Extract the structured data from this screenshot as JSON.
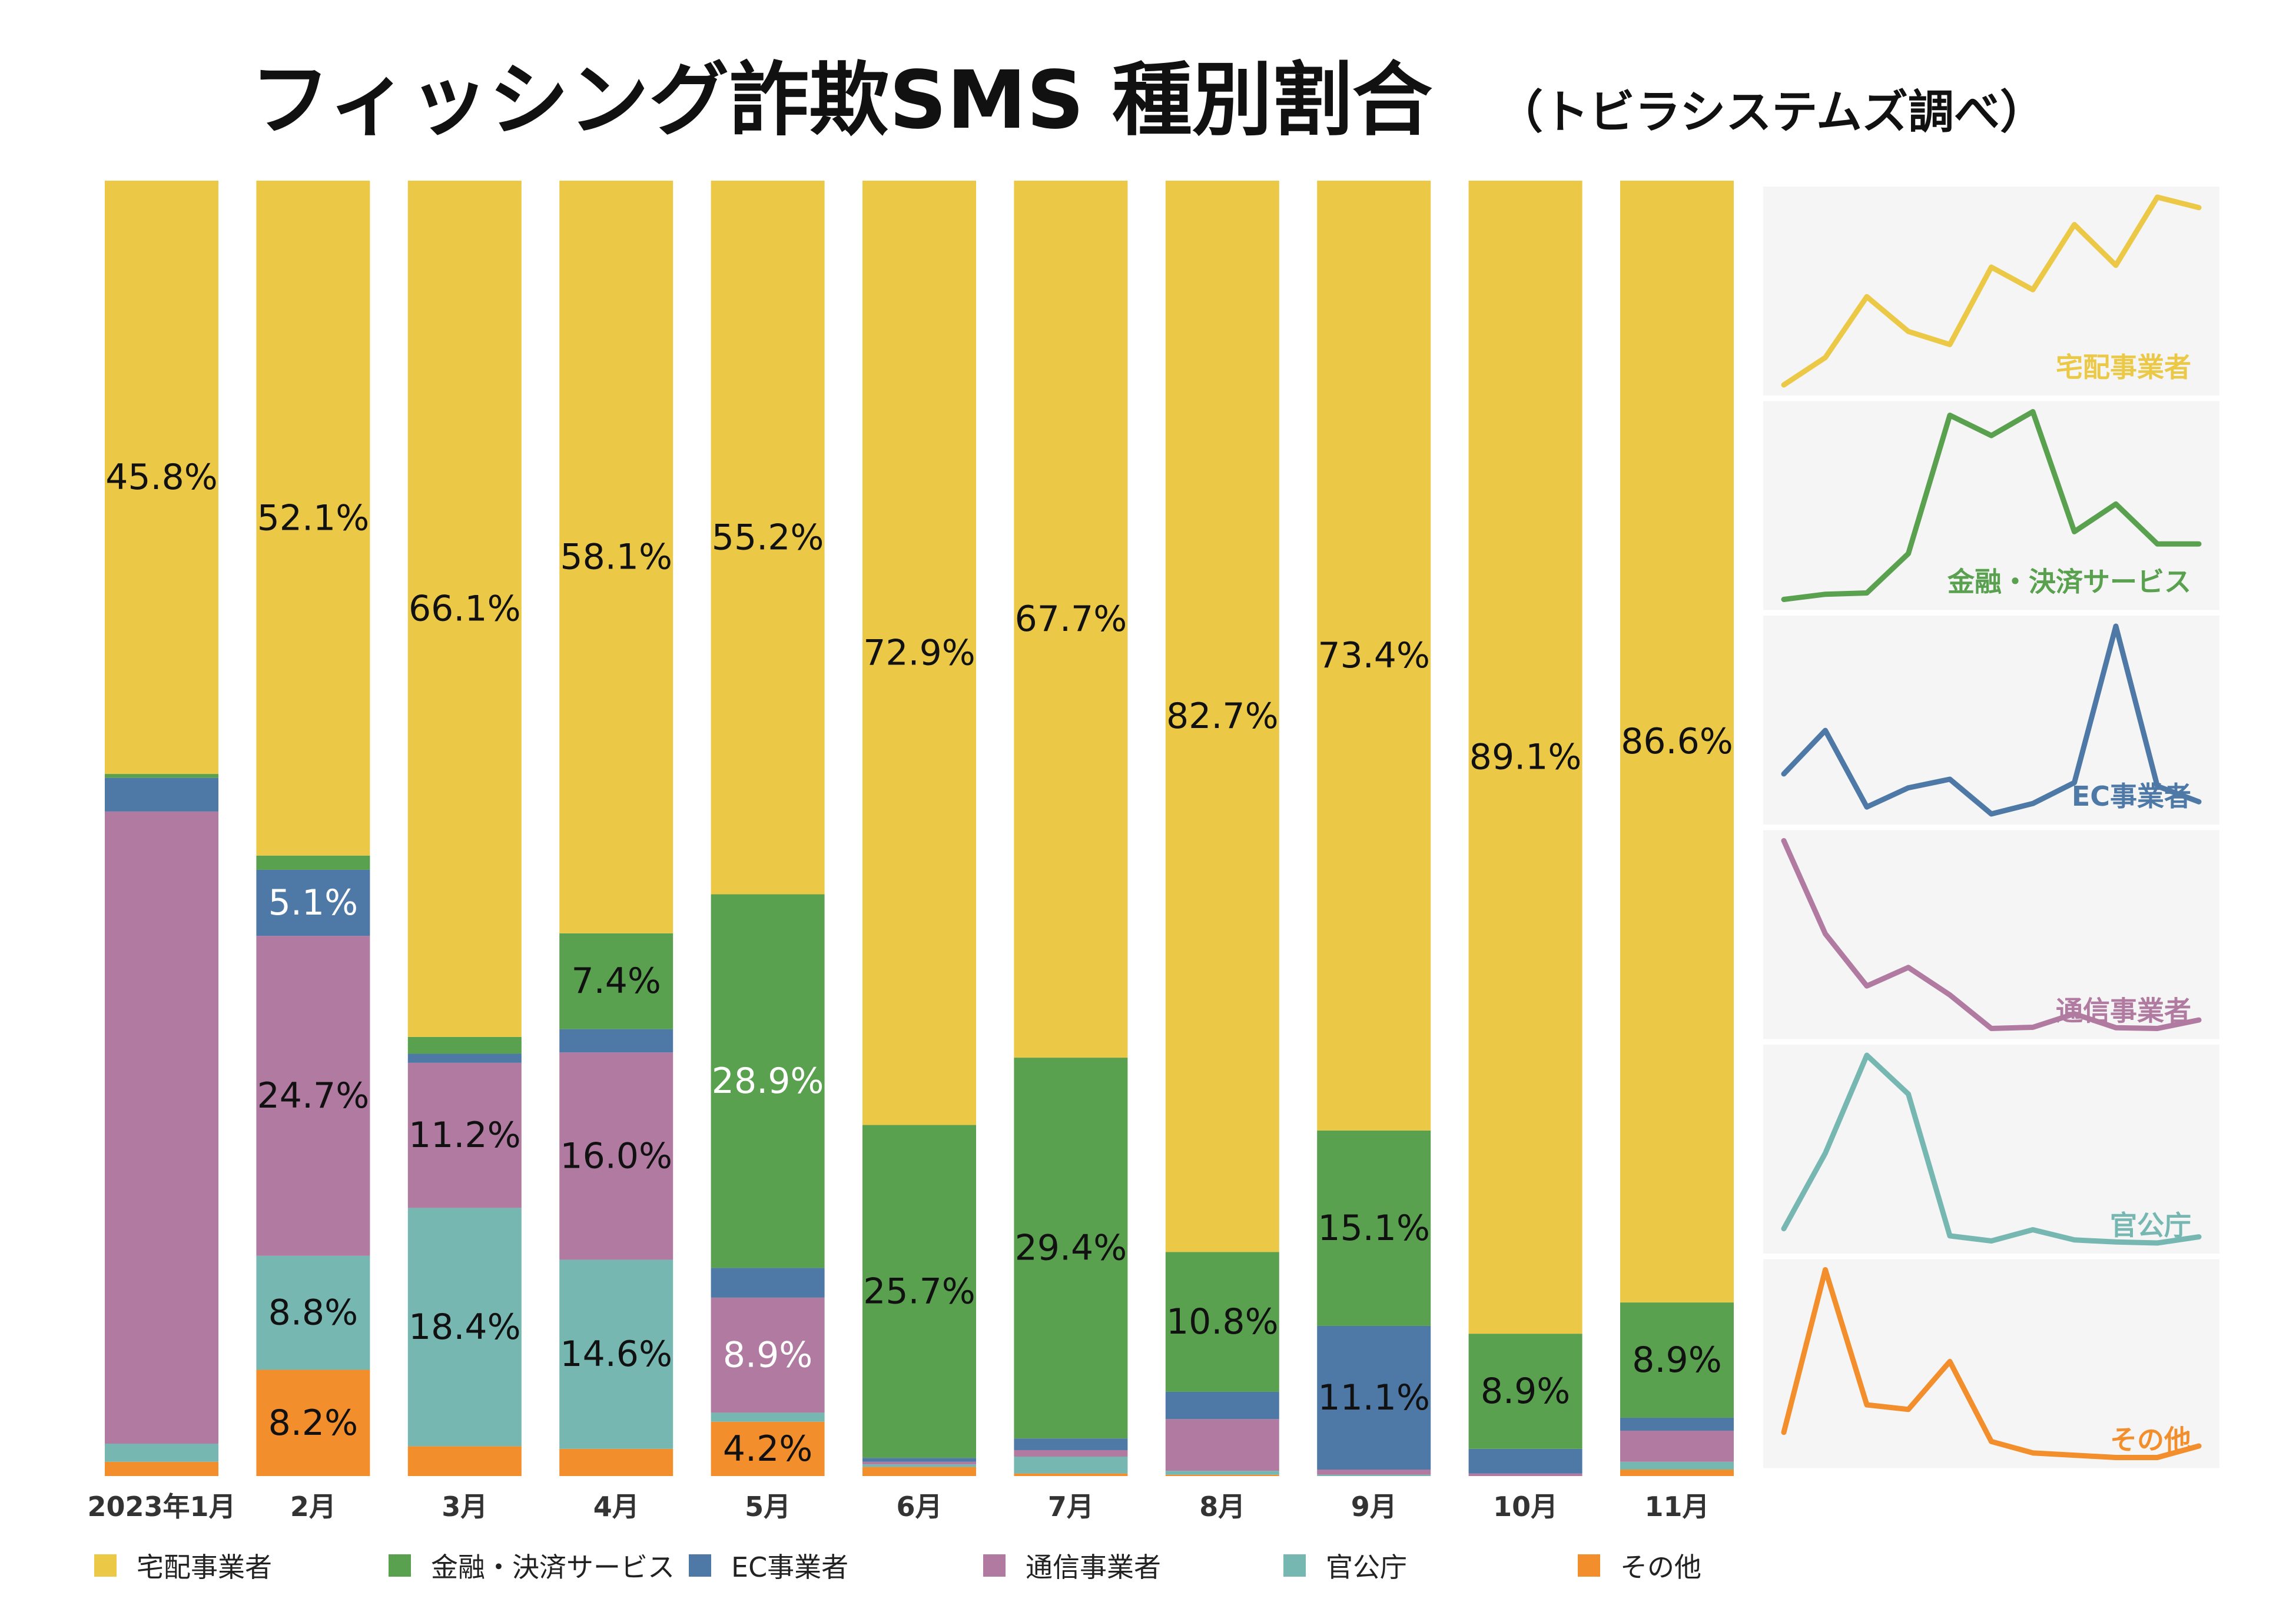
{
  "title": "フィッシング詐欺SMS 種別割合",
  "subtitle": "（トビラシステムズ調べ）",
  "chart_data": {
    "type": "bar",
    "stacked": true,
    "normalized": true,
    "categories": [
      "2023年1月",
      "2月",
      "3月",
      "4月",
      "5月",
      "6月",
      "7月",
      "8月",
      "9月",
      "10月",
      "11月"
    ],
    "series": [
      {
        "name": "宅配事業者",
        "color": "#EBC947",
        "values": [
          45.8,
          52.1,
          66.1,
          58.1,
          55.2,
          72.9,
          67.7,
          82.7,
          73.4,
          89.1,
          86.6
        ],
        "labels": [
          "45.8%",
          "52.1%",
          "66.1%",
          "58.1%",
          "55.2%",
          "72.9%",
          "67.7%",
          "82.7%",
          "73.4%",
          "89.1%",
          "86.6%"
        ]
      },
      {
        "name": "金融・決済サービス",
        "color": "#59A14F",
        "values": [
          0.3,
          1.1,
          1.3,
          7.4,
          28.9,
          25.7,
          29.4,
          10.8,
          15.1,
          8.9,
          8.9
        ],
        "labels": [
          "",
          "",
          "",
          "7.4%",
          "28.9%",
          "25.7%",
          "29.4%",
          "10.8%",
          "15.1%",
          "8.9%",
          "8.9%"
        ]
      },
      {
        "name": "EC事業者",
        "color": "#4E79A7",
        "values": [
          2.6,
          5.1,
          0.7,
          1.8,
          2.3,
          0.3,
          0.9,
          2.1,
          11.1,
          1.9,
          1.0
        ],
        "labels": [
          "",
          "5.1%",
          "",
          "",
          "",
          "",
          "",
          "",
          "11.1%",
          "",
          ""
        ]
      },
      {
        "name": "通信事業者",
        "color": "#B07AA1",
        "values": [
          48.8,
          24.7,
          11.2,
          16.0,
          8.9,
          0.2,
          0.5,
          4.0,
          0.4,
          0.2,
          2.4
        ],
        "labels": [
          "",
          "24.7%",
          "11.2%",
          "16.0%",
          "8.9%",
          "",
          "",
          "",
          "",
          "",
          ""
        ]
      },
      {
        "name": "官公庁",
        "color": "#76B7B2",
        "values": [
          1.4,
          8.8,
          18.4,
          14.6,
          0.7,
          0.2,
          1.3,
          0.3,
          0.1,
          0.0,
          0.6
        ],
        "labels": [
          "",
          "8.8%",
          "18.4%",
          "14.6%",
          "",
          "",
          "",
          "",
          "",
          "",
          ""
        ]
      },
      {
        "name": "その他",
        "color": "#F28E2B",
        "values": [
          1.1,
          8.2,
          2.3,
          2.1,
          4.2,
          0.7,
          0.2,
          0.1,
          0.0,
          0.0,
          0.5
        ],
        "labels": [
          "",
          "8.2%",
          "",
          "",
          "4.2%",
          "",
          "",
          "",
          "",
          "",
          ""
        ]
      }
    ],
    "ylim": [
      0,
      100
    ],
    "label_colors": {
      "dark": "#111111",
      "light": "#FFFFFF"
    },
    "light_label_cells": [
      [
        2,
        1
      ],
      [
        1,
        4
      ],
      [
        3,
        4
      ],
      [
        4,
        5
      ],
      [
        4,
        10
      ],
      [
        10,
        1
      ]
    ],
    "sparklines": {
      "type": "line",
      "background": "#F5F5F5",
      "series_order": [
        "宅配事業者",
        "金融・決済サービス",
        "EC事業者",
        "通信事業者",
        "官公庁",
        "その他"
      ]
    }
  }
}
